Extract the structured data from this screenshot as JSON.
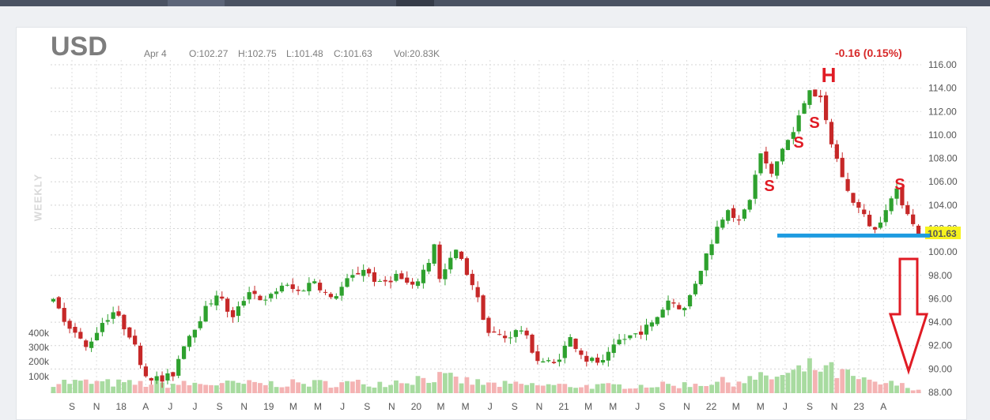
{
  "header": {
    "symbol": "USD",
    "date": "Apr 4",
    "open": "O:102.27",
    "high": "H:102.75",
    "low": "L:101.48",
    "close": "C:101.63",
    "volume": "Vol:20.83K",
    "change": "-0.16 (0.15%)",
    "period": "WEEKLY"
  },
  "colors": {
    "up": "#2ea12e",
    "down": "#c62828",
    "vol_up": "#a8dba0",
    "vol_down": "#f4b3b3",
    "support": "#1e9be0",
    "annotation": "#e01b24",
    "price_tag": "#f6f21e"
  },
  "annotations": {
    "head": "H",
    "shoulder": "S",
    "support_line": "support",
    "down_arrow": "down-arrow"
  },
  "chart_data": {
    "type": "candlestick",
    "ylim": [
      88,
      116
    ],
    "y_ticks": [
      "116.00",
      "114.00",
      "112.00",
      "110.00",
      "108.00",
      "106.00",
      "104.00",
      "102.00",
      "100.00",
      "98.00",
      "96.00",
      "94.00",
      "92.00",
      "90.00",
      "88.00"
    ],
    "last_price": "101.63",
    "x_ticks": [
      "S",
      "N",
      "18",
      "A",
      "J",
      "J",
      "S",
      "N",
      "19",
      "M",
      "M",
      "J",
      "S",
      "N",
      "20",
      "M",
      "M",
      "J",
      "S",
      "N",
      "21",
      "M",
      "M",
      "J",
      "S",
      "N",
      "22",
      "M",
      "M",
      "J",
      "S",
      "N",
      "23",
      "A"
    ],
    "volume_ticks": [
      "400k",
      "300k",
      "200k",
      "100k"
    ],
    "support_level": 101.4,
    "price_path": [
      [
        0,
        95.7
      ],
      [
        3,
        93.7
      ],
      [
        6,
        91.8
      ],
      [
        9,
        94.0
      ],
      [
        11,
        94.9
      ],
      [
        14,
        93.0
      ],
      [
        17,
        89.5
      ],
      [
        20,
        89.0
      ],
      [
        22,
        89.6
      ],
      [
        24,
        92.2
      ],
      [
        27,
        94.4
      ],
      [
        30,
        96.5
      ],
      [
        33,
        94.3
      ],
      [
        36,
        96.8
      ],
      [
        39,
        95.7
      ],
      [
        42,
        97.2
      ],
      [
        45,
        96.6
      ],
      [
        48,
        97.6
      ],
      [
        51,
        95.9
      ],
      [
        54,
        97.5
      ],
      [
        57,
        98.6
      ],
      [
        60,
        97.2
      ],
      [
        63,
        98.0
      ],
      [
        66,
        96.9
      ],
      [
        69,
        99.2
      ],
      [
        70,
        100.8
      ],
      [
        71,
        97.6
      ],
      [
        74,
        100.1
      ],
      [
        77,
        97.3
      ],
      [
        80,
        93.1
      ],
      [
        83,
        92.7
      ],
      [
        86,
        93.4
      ],
      [
        89,
        90.8
      ],
      [
        92,
        90.4
      ],
      [
        95,
        92.6
      ],
      [
        98,
        90.8
      ],
      [
        101,
        90.5
      ],
      [
        104,
        92.4
      ],
      [
        107,
        93.0
      ],
      [
        110,
        93.8
      ],
      [
        113,
        95.9
      ],
      [
        116,
        95.1
      ],
      [
        119,
        98.6
      ],
      [
        122,
        102.1
      ],
      [
        124,
        103.9
      ],
      [
        126,
        102.4
      ],
      [
        128,
        104.6
      ],
      [
        130,
        108.4
      ],
      [
        132,
        106.5
      ],
      [
        134,
        108.9
      ],
      [
        136,
        110.2
      ],
      [
        139,
        114.1
      ],
      [
        141,
        112.9
      ],
      [
        143,
        109.3
      ],
      [
        146,
        105.1
      ],
      [
        149,
        103.0
      ],
      [
        151,
        101.8
      ],
      [
        153,
        103.9
      ],
      [
        155,
        105.1
      ],
      [
        157,
        103.5
      ],
      [
        158,
        102.3
      ],
      [
        159,
        101.63
      ]
    ],
    "volume_path": [
      [
        0,
        90
      ],
      [
        20,
        70
      ],
      [
        40,
        75
      ],
      [
        60,
        80
      ],
      [
        70,
        130
      ],
      [
        80,
        70
      ],
      [
        100,
        55
      ],
      [
        115,
        65
      ],
      [
        125,
        95
      ],
      [
        135,
        140
      ],
      [
        140,
        210
      ],
      [
        145,
        150
      ],
      [
        150,
        80
      ],
      [
        155,
        70
      ],
      [
        159,
        30
      ]
    ]
  }
}
